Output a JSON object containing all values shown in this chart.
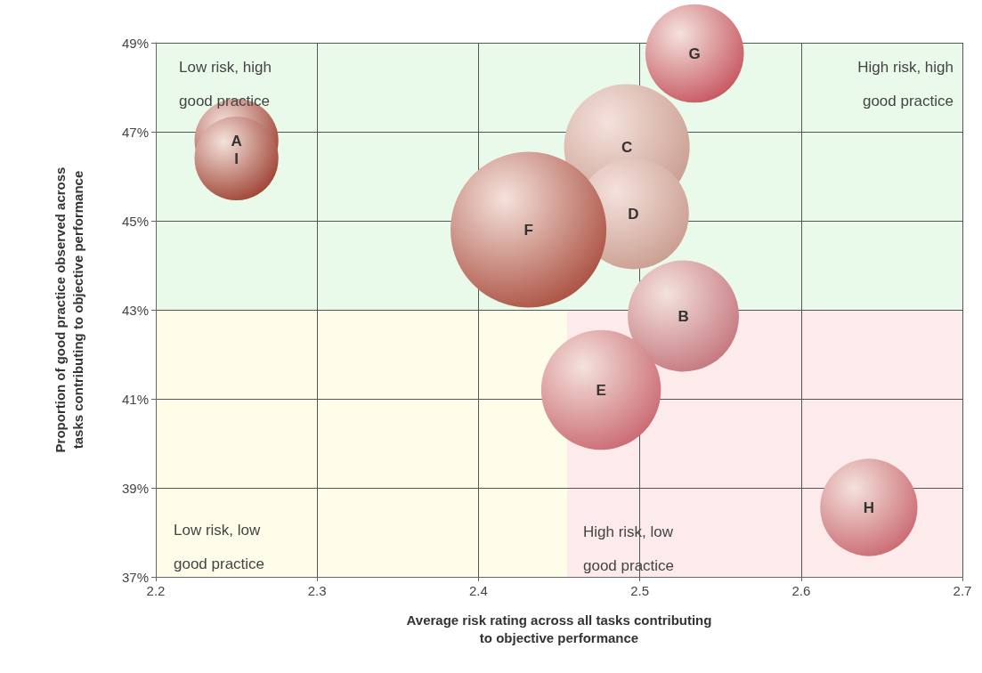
{
  "chart_data": {
    "type": "bubble",
    "xlabel": "Average risk rating across all tasks contributing\nto objective performance",
    "ylabel": "Proportion of good practice observed across\ntasks contributing to objective performance",
    "x": [
      2.25,
      2.527,
      2.492,
      2.496,
      2.476,
      2.431,
      2.534,
      2.642,
      2.25
    ],
    "values": [
      46.8,
      42.86,
      46.66,
      45.16,
      41.2,
      44.8,
      48.76,
      38.56,
      46.4
    ],
    "sizes": [
      0.29,
      0.51,
      0.65,
      0.51,
      0.59,
      1,
      0.4,
      0.39,
      0.29
    ],
    "colors": [
      "#9a3a2a",
      "#c2727a",
      "#c89a8c",
      "#c89a8c",
      "#c8646c",
      "#a84a3a",
      "#c4505a",
      "#c8646c",
      "#9a3a2a"
    ],
    "xlim": [
      2.2,
      2.7
    ],
    "xticks": [
      2.2,
      2.3,
      2.4,
      2.5,
      2.6,
      2.7
    ],
    "ylim": [
      37,
      49
    ],
    "yticks": [
      {
        "value": 37,
        "label": "37%"
      },
      {
        "value": 39,
        "label": "39%"
      },
      {
        "value": 41,
        "label": "41%"
      },
      {
        "value": 43,
        "label": "43%"
      },
      {
        "value": 45,
        "label": "45%"
      },
      {
        "value": 47,
        "label": "47%"
      },
      {
        "value": 49,
        "label": "49%"
      }
    ],
    "grid": true,
    "bands": [
      {
        "axis": "x",
        "from": 2.2,
        "to": 2.455,
        "color": "#fdfdea"
      },
      {
        "axis": "x",
        "from": 2.455,
        "to": 2.7,
        "color": "#fdeaea"
      },
      {
        "axis": "y",
        "from": 43,
        "to": 49,
        "color": "#eafaea"
      }
    ],
    "annotations": [
      {
        "text": "A",
        "x": 2.25,
        "y": 46.8
      },
      {
        "text": "B",
        "x": 2.527,
        "y": 42.86
      },
      {
        "text": "C",
        "x": 2.492,
        "y": 46.66
      },
      {
        "text": "D",
        "x": 2.496,
        "y": 45.16
      },
      {
        "text": "E",
        "x": 2.476,
        "y": 41.2
      },
      {
        "text": "F",
        "x": 2.431,
        "y": 44.8
      },
      {
        "text": "G",
        "x": 2.534,
        "y": 48.76
      },
      {
        "text": "H",
        "x": 2.642,
        "y": 38.56
      },
      {
        "text": "I",
        "x": 2.25,
        "y": 46.4
      },
      "Low risk, high\ngood practice",
      "High risk, high\ngood practice",
      "Low risk, low\ngood practice",
      "High risk, low\ngood practice"
    ]
  }
}
